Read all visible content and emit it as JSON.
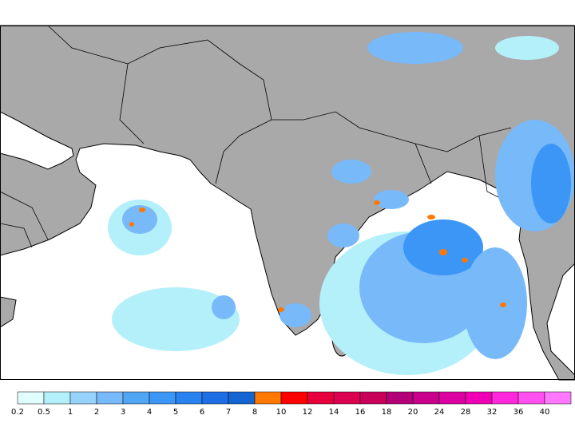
{
  "legend": {
    "labels": [
      "0.2",
      "0.5",
      "1",
      "2",
      "3",
      "4",
      "5",
      "6",
      "7",
      "8",
      "10",
      "12",
      "14",
      "16",
      "18",
      "20",
      "24",
      "28",
      "32",
      "36",
      "40"
    ],
    "colors": [
      "#e0fefe",
      "#b4f0fa",
      "#96d2fa",
      "#78b9fa",
      "#50a5f5",
      "#3c96f5",
      "#2882f0",
      "#1e6ee6",
      "#1464d2",
      "#ff7800",
      "#ff0000",
      "#e6003c",
      "#dc0050",
      "#c8005a",
      "#b40078",
      "#c8008c",
      "#dc00a0",
      "#f000b4",
      "#ff28dc",
      "#ff50f0",
      "#ff78ff"
    ]
  }
}
